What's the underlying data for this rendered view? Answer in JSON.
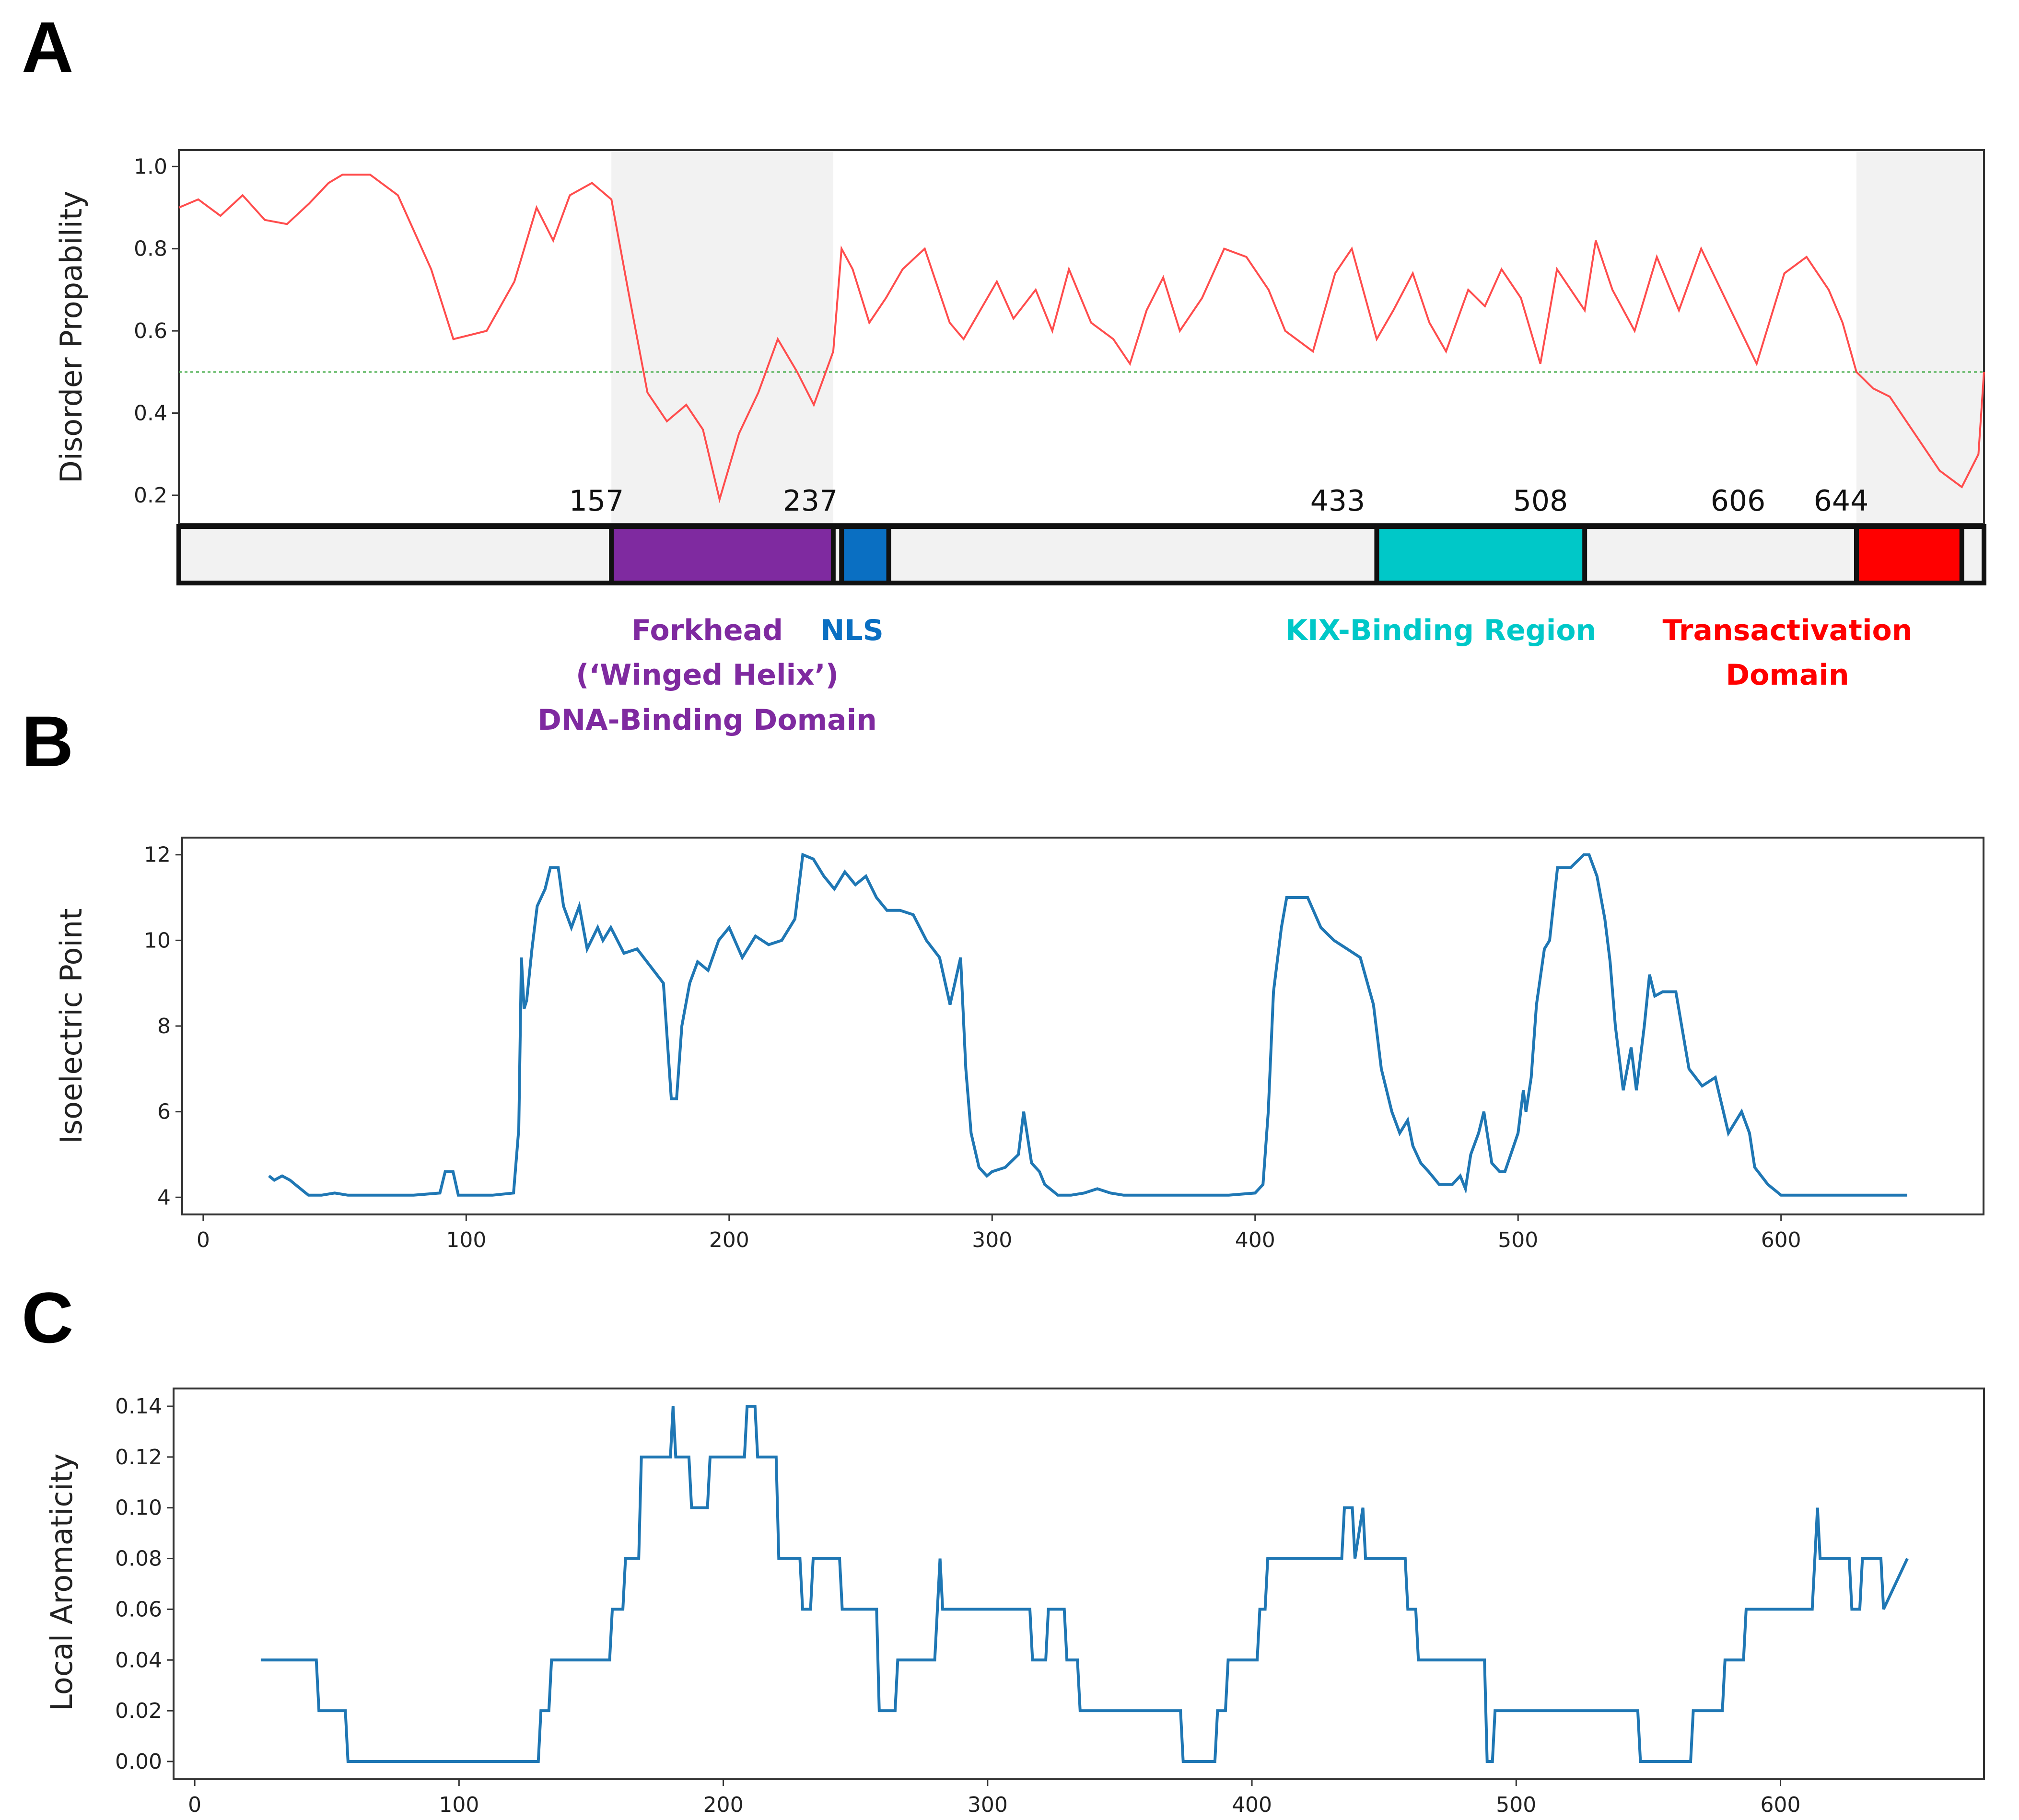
{
  "figure": {
    "panels": [
      "A",
      "B",
      "C"
    ]
  },
  "chart_data": [
    {
      "id": "A",
      "type": "line",
      "title": "",
      "xlabel": "",
      "ylabel": "Disorder Propability",
      "xlim": [
        1,
        652
      ],
      "ylim": [
        0.13,
        1.04
      ],
      "yticks": [
        "0.2",
        "0.4",
        "0.6",
        "0.8",
        "1.0"
      ],
      "line_color": "#ff4d4d",
      "threshold": {
        "value": 0.5,
        "color": "#4caf50"
      },
      "shaded_regions": [
        [
          157,
          237
        ],
        [
          606,
          652
        ]
      ],
      "series": [
        {
          "name": "Disorder probability",
          "x": [
            1,
            8,
            16,
            24,
            32,
            40,
            48,
            55,
            60,
            70,
            80,
            92,
            100,
            112,
            122,
            130,
            136,
            142,
            150,
            157,
            163,
            170,
            177,
            184,
            190,
            196,
            203,
            210,
            217,
            224,
            230,
            237,
            240,
            244,
            250,
            256,
            262,
            270,
            279,
            284,
            290,
            296,
            302,
            310,
            316,
            322,
            330,
            338,
            344,
            350,
            356,
            362,
            370,
            378,
            386,
            394,
            400,
            410,
            418,
            424,
            433,
            439,
            446,
            452,
            458,
            466,
            472,
            478,
            485,
            492,
            498,
            508,
            512,
            518,
            526,
            534,
            542,
            550,
            560,
            570,
            580,
            588,
            596,
            601,
            606,
            612,
            618,
            624,
            630,
            636,
            644,
            650,
            652
          ],
          "values": [
            0.9,
            0.92,
            0.88,
            0.93,
            0.87,
            0.86,
            0.91,
            0.96,
            0.98,
            0.98,
            0.93,
            0.75,
            0.58,
            0.6,
            0.72,
            0.9,
            0.82,
            0.93,
            0.96,
            0.92,
            0.7,
            0.45,
            0.38,
            0.42,
            0.36,
            0.19,
            0.35,
            0.45,
            0.58,
            0.5,
            0.42,
            0.55,
            0.8,
            0.75,
            0.62,
            0.68,
            0.75,
            0.8,
            0.62,
            0.58,
            0.65,
            0.72,
            0.63,
            0.7,
            0.6,
            0.75,
            0.62,
            0.58,
            0.52,
            0.65,
            0.73,
            0.6,
            0.68,
            0.8,
            0.78,
            0.7,
            0.6,
            0.55,
            0.74,
            0.8,
            0.58,
            0.65,
            0.74,
            0.62,
            0.55,
            0.7,
            0.66,
            0.75,
            0.68,
            0.52,
            0.75,
            0.65,
            0.82,
            0.7,
            0.6,
            0.78,
            0.65,
            0.8,
            0.66,
            0.52,
            0.74,
            0.78,
            0.7,
            0.62,
            0.5,
            0.46,
            0.44,
            0.38,
            0.32,
            0.26,
            0.22,
            0.3,
            0.5
          ]
        }
      ],
      "domain_bar": {
        "positions": [
          "157",
          "237",
          "433",
          "508",
          "606",
          "644"
        ],
        "domains": [
          {
            "name": "Forkhead",
            "start": 157,
            "end": 237,
            "color": "#7f2aa0",
            "label_lines": [
              "Forkhead",
              "(‘Winged Helix’)",
              "DNA-Binding Domain"
            ]
          },
          {
            "name": "NLS",
            "start": 240,
            "end": 257,
            "color": "#0a6fc2",
            "label_lines": [
              "NLS"
            ]
          },
          {
            "name": "KIX",
            "start": 433,
            "end": 508,
            "color": "#00c8c8",
            "label_lines": [
              "KIX-Binding Region"
            ]
          },
          {
            "name": "TAD",
            "start": 606,
            "end": 644,
            "color": "#ff0000",
            "label_lines": [
              "Transactivation",
              "Domain"
            ]
          }
        ]
      }
    },
    {
      "id": "B",
      "type": "line",
      "title": "",
      "xlabel": "",
      "ylabel": "Isoelectric Point",
      "xlim": [
        -8,
        677
      ],
      "ylim": [
        3.6,
        12.4
      ],
      "xticks": [
        "0",
        "100",
        "200",
        "300",
        "400",
        "500",
        "600"
      ],
      "yticks": [
        "4",
        "6",
        "8",
        "10",
        "12"
      ],
      "line_color": "#1f77b4",
      "series": [
        {
          "name": "Isoelectric Point",
          "x": [
            25,
            27,
            30,
            33,
            35,
            40,
            45,
            50,
            55,
            60,
            70,
            80,
            90,
            92,
            95,
            97,
            100,
            110,
            118,
            120,
            121,
            122,
            123,
            125,
            127,
            130,
            132,
            135,
            137,
            140,
            143,
            146,
            150,
            152,
            155,
            160,
            165,
            170,
            175,
            178,
            180,
            182,
            185,
            188,
            192,
            196,
            200,
            205,
            210,
            215,
            220,
            225,
            228,
            232,
            236,
            240,
            244,
            248,
            252,
            256,
            260,
            265,
            270,
            275,
            280,
            284,
            288,
            290,
            292,
            295,
            298,
            300,
            305,
            310,
            312,
            315,
            318,
            320,
            325,
            330,
            335,
            340,
            345,
            350,
            360,
            370,
            380,
            390,
            400,
            403,
            405,
            407,
            410,
            412,
            415,
            420,
            425,
            430,
            435,
            440,
            445,
            448,
            450,
            452,
            455,
            458,
            460,
            463,
            466,
            470,
            475,
            478,
            480,
            482,
            485,
            487,
            490,
            493,
            495,
            500,
            502,
            503,
            505,
            507,
            510,
            512,
            515,
            520,
            525,
            527,
            530,
            533,
            535,
            537,
            540,
            543,
            545,
            548,
            550,
            552,
            555,
            560,
            565,
            570,
            575,
            580,
            585,
            588,
            590,
            595,
            600,
            640,
            648
          ],
          "values": [
            4.5,
            4.4,
            4.5,
            4.4,
            4.3,
            4.05,
            4.05,
            4.1,
            4.05,
            4.05,
            4.05,
            4.05,
            4.1,
            4.6,
            4.6,
            4.05,
            4.05,
            4.05,
            4.1,
            5.6,
            9.6,
            8.4,
            8.6,
            9.8,
            10.8,
            11.2,
            11.7,
            11.7,
            10.8,
            10.3,
            10.8,
            9.8,
            10.3,
            10.0,
            10.3,
            9.7,
            9.8,
            9.4,
            9.0,
            6.3,
            6.3,
            8.0,
            9.0,
            9.5,
            9.3,
            10.0,
            10.3,
            9.6,
            10.1,
            9.9,
            10.0,
            10.5,
            12.0,
            11.9,
            11.5,
            11.2,
            11.6,
            11.3,
            11.5,
            11.0,
            10.7,
            10.7,
            10.6,
            10.0,
            9.6,
            8.5,
            9.6,
            7.0,
            5.5,
            4.7,
            4.5,
            4.6,
            4.7,
            5.0,
            6.0,
            4.8,
            4.6,
            4.3,
            4.05,
            4.05,
            4.1,
            4.2,
            4.1,
            4.05,
            4.05,
            4.05,
            4.05,
            4.05,
            4.1,
            4.3,
            6.0,
            8.8,
            10.3,
            11.0,
            11.0,
            11.0,
            10.3,
            10.0,
            9.8,
            9.6,
            8.5,
            7.0,
            6.5,
            6.0,
            5.5,
            5.8,
            5.2,
            4.8,
            4.6,
            4.3,
            4.3,
            4.5,
            4.2,
            5.0,
            5.5,
            6.0,
            4.8,
            4.6,
            4.6,
            5.5,
            6.5,
            6.0,
            6.8,
            8.5,
            9.8,
            10.0,
            11.7,
            11.7,
            12.0,
            12.0,
            11.5,
            10.5,
            9.5,
            8.0,
            6.5,
            7.5,
            6.5,
            8.0,
            9.2,
            8.7,
            8.8,
            8.8,
            7.0,
            6.6,
            6.8,
            5.5,
            6.0,
            5.5,
            4.7,
            4.3,
            4.05,
            4.05,
            4.05
          ]
        }
      ]
    },
    {
      "id": "C",
      "type": "line",
      "title": "",
      "xlabel": "",
      "ylabel": "Local Aromaticity",
      "xlim": [
        -8,
        677
      ],
      "ylim": [
        -0.007,
        0.147
      ],
      "xticks": [
        "0",
        "100",
        "200",
        "300",
        "400",
        "500",
        "600"
      ],
      "yticks": [
        "0.00",
        "0.02",
        "0.04",
        "0.06",
        "0.08",
        "0.10",
        "0.12",
        "0.14"
      ],
      "line_color": "#1f77b4",
      "series": [
        {
          "name": "Local Aromaticity",
          "x": [
            25,
            46,
            47,
            57,
            58,
            130,
            131,
            134,
            135,
            157,
            158,
            162,
            163,
            168,
            169,
            170,
            171,
            180,
            181,
            182,
            183,
            187,
            188,
            194,
            195,
            208,
            209,
            212,
            213,
            220,
            221,
            229,
            230,
            233,
            234,
            244,
            245,
            258,
            259,
            265,
            266,
            280,
            281,
            282,
            283,
            284,
            285,
            316,
            317,
            322,
            323,
            329,
            330,
            334,
            335,
            373,
            374,
            386,
            387,
            390,
            391,
            402,
            403,
            405,
            406,
            434,
            435,
            438,
            439,
            442,
            443,
            458,
            459,
            462,
            463,
            488,
            489,
            491,
            492,
            546,
            547,
            566,
            567,
            578,
            579,
            586,
            587,
            612,
            613,
            614,
            615,
            626,
            627,
            630,
            631,
            638,
            639,
            648
          ],
          "values": [
            0.04,
            0.04,
            0.02,
            0.02,
            0.0,
            0.0,
            0.02,
            0.02,
            0.04,
            0.04,
            0.06,
            0.06,
            0.08,
            0.08,
            0.12,
            0.12,
            0.12,
            0.12,
            0.14,
            0.12,
            0.12,
            0.12,
            0.1,
            0.1,
            0.12,
            0.12,
            0.14,
            0.14,
            0.12,
            0.12,
            0.08,
            0.08,
            0.06,
            0.06,
            0.08,
            0.08,
            0.06,
            0.06,
            0.02,
            0.02,
            0.04,
            0.04,
            0.06,
            0.08,
            0.06,
            0.06,
            0.06,
            0.06,
            0.04,
            0.04,
            0.06,
            0.06,
            0.04,
            0.04,
            0.02,
            0.02,
            0.0,
            0.0,
            0.02,
            0.02,
            0.04,
            0.04,
            0.06,
            0.06,
            0.08,
            0.08,
            0.1,
            0.1,
            0.08,
            0.1,
            0.08,
            0.08,
            0.06,
            0.06,
            0.04,
            0.04,
            0.0,
            0.0,
            0.02,
            0.02,
            0.0,
            0.0,
            0.02,
            0.02,
            0.04,
            0.04,
            0.06,
            0.06,
            0.08,
            0.1,
            0.08,
            0.08,
            0.06,
            0.06,
            0.08,
            0.08,
            0.06,
            0.08
          ]
        }
      ]
    }
  ]
}
